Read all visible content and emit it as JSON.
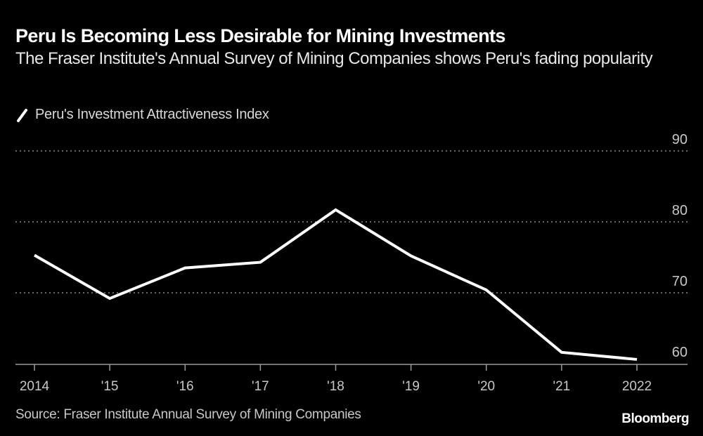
{
  "header": {
    "title": "Peru Is Becoming Less Desirable for Mining Investments",
    "subtitle": "The Fraser Institute's Annual Survey of Mining Companies shows Peru's fading popularity"
  },
  "footer": {
    "source": "Source: Fraser Institute Annual Survey of Mining Companies",
    "brand": "Bloomberg"
  },
  "colors": {
    "background": "#000000",
    "line": "#ffffff",
    "grid": "#8a8a8a",
    "axis": "#9a9a9a"
  },
  "chart_data": {
    "type": "line",
    "title": "Peru Is Becoming Less Desirable for Mining Investments",
    "subtitle": "The Fraser Institute's Annual Survey of Mining Companies shows Peru's fading popularity",
    "xlabel": "",
    "ylabel": "",
    "categories": [
      "2014",
      "'15",
      "'16",
      "'17",
      "'18",
      "'19",
      "'20",
      "'21",
      "2022"
    ],
    "x": [
      2014,
      2015,
      2016,
      2017,
      2018,
      2019,
      2020,
      2021,
      2022
    ],
    "series": [
      {
        "name": "Peru's Investment Attractiveness Index",
        "values": [
          75.3,
          69.2,
          73.5,
          74.3,
          81.7,
          75.2,
          70.4,
          61.6,
          60.6
        ]
      }
    ],
    "ylim": [
      60,
      90
    ],
    "yticks": [
      60,
      70,
      80,
      90
    ],
    "ytick_labels": [
      "60",
      "70",
      "80",
      "90"
    ],
    "grid": true,
    "legend_position": "top-left",
    "y_axis_side": "right"
  }
}
